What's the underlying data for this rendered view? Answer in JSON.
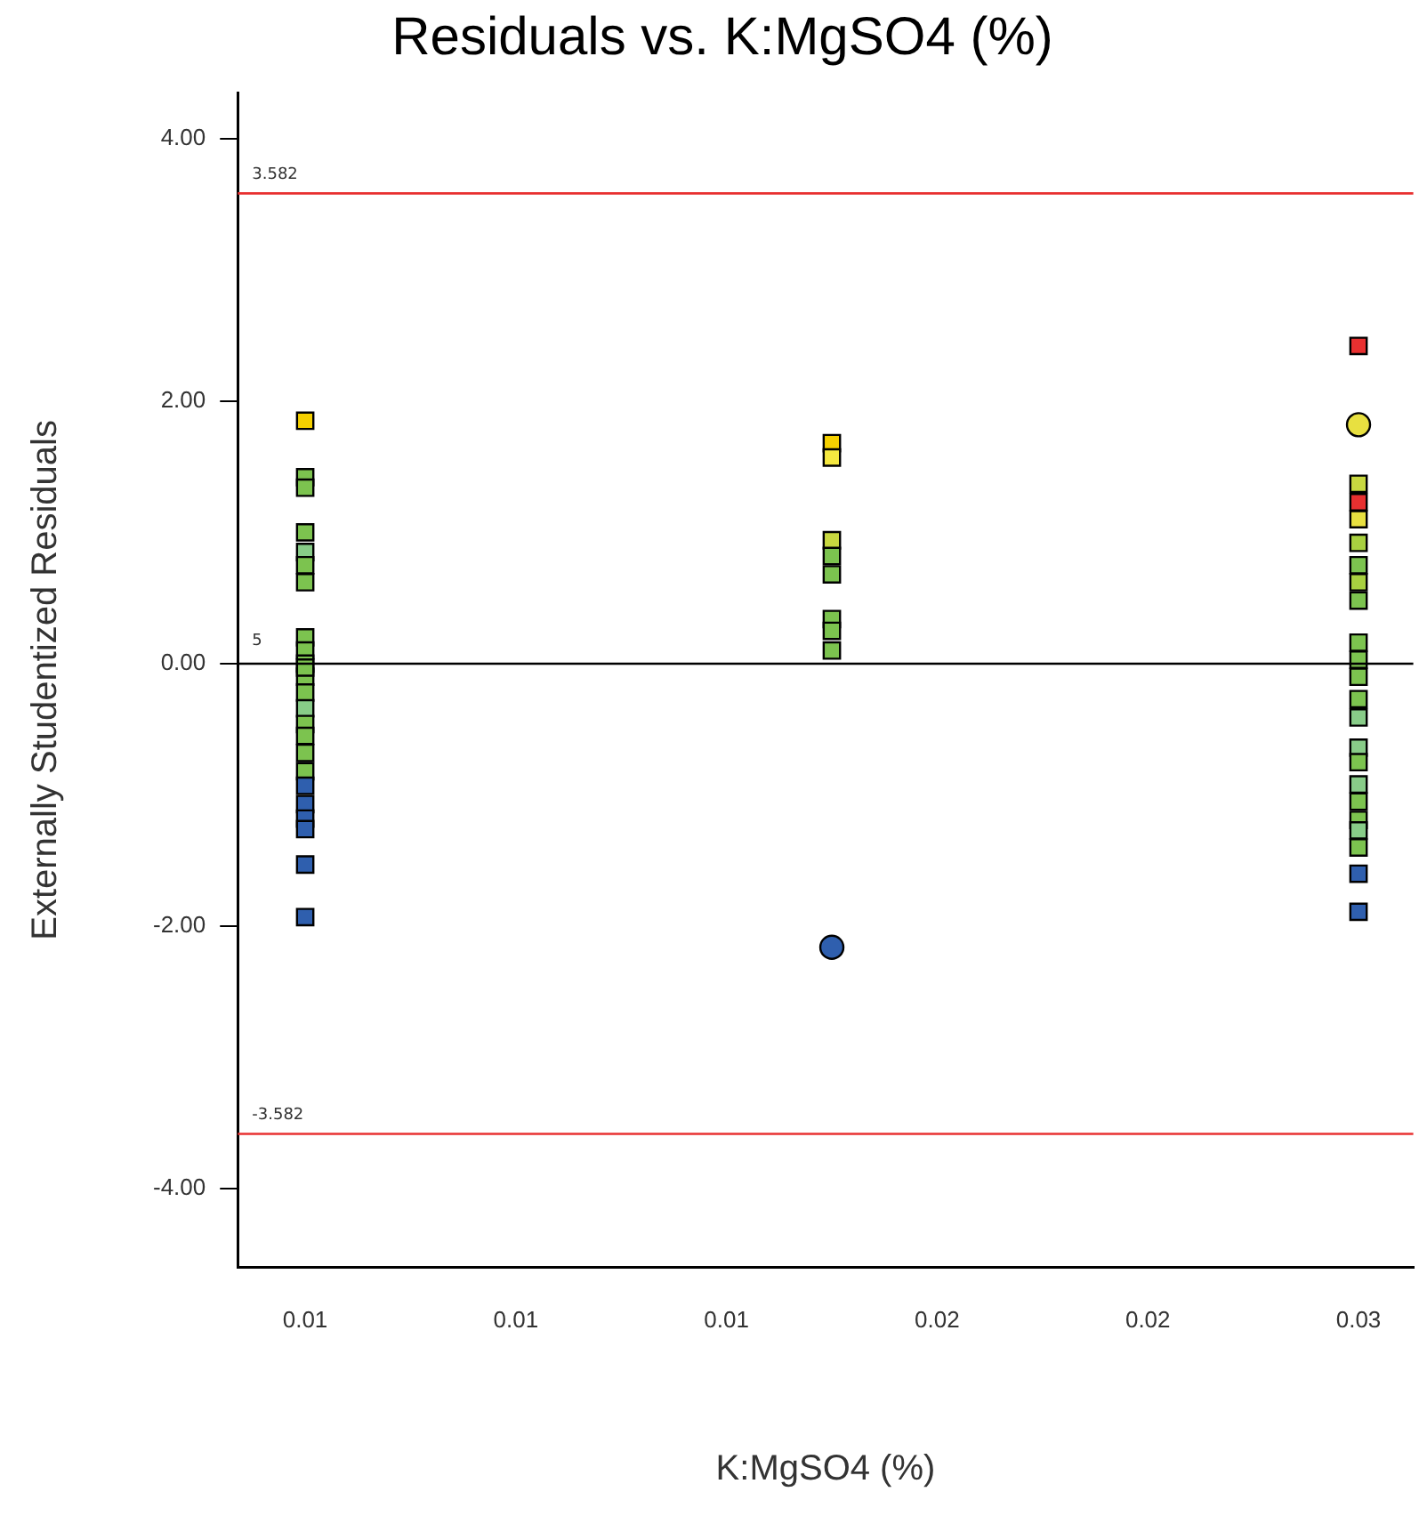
{
  "chart_data": {
    "type": "scatter",
    "title": "Residuals vs. K:MgSO4 (%)",
    "xlabel": "K:MgSO4 (%)",
    "ylabel": "Externally Studentized Residuals",
    "xlim": [
      0.0034,
      0.0313
    ],
    "ylim": [
      -4.6,
      4.35
    ],
    "xticks": [
      {
        "value": 0.005,
        "label": "0.01"
      },
      {
        "value": 0.01,
        "label": "0.01"
      },
      {
        "value": 0.015,
        "label": "0.01"
      },
      {
        "value": 0.02,
        "label": "0.02"
      },
      {
        "value": 0.025,
        "label": "0.02"
      },
      {
        "value": 0.03,
        "label": "0.03"
      }
    ],
    "yticks": [
      {
        "value": -4,
        "label": "-4.00"
      },
      {
        "value": -2,
        "label": "-2.00"
      },
      {
        "value": 0,
        "label": "0.00"
      },
      {
        "value": 2,
        "label": "2.00"
      },
      {
        "value": 4,
        "label": "4.00"
      }
    ],
    "grid": false,
    "legend": false,
    "series": [
      {
        "marker": "square",
        "x": [
          0.005,
          0.005,
          0.005,
          0.005,
          0.005,
          0.005,
          0.005,
          0.005,
          0.005,
          0.005,
          0.005,
          0.005,
          0.005,
          0.005,
          0.005,
          0.005,
          0.005,
          0.005,
          0.005,
          0.005,
          0.005,
          0.005,
          0.005,
          0.005,
          0.0175,
          0.0175,
          0.0175,
          0.0175,
          0.0175,
          0.0175,
          0.0175,
          0.0175,
          0.03,
          0.03,
          0.03,
          0.03,
          0.03,
          0.03,
          0.03,
          0.03,
          0.03,
          0.03,
          0.03,
          0.03,
          0.03,
          0.03,
          0.03,
          0.03,
          0.03,
          0.03,
          0.03,
          0.03,
          0.03,
          0.03
        ],
        "values": [
          1.85,
          1.42,
          1.34,
          1.0,
          0.85,
          0.75,
          0.62,
          0.2,
          0.1,
          0,
          -0.1,
          -0.22,
          -0.34,
          -0.46,
          -0.55,
          -0.68,
          -0.82,
          -0.93,
          -1.07,
          -1.18,
          -1.26,
          -1.53,
          -1.93,
          -0.03,
          1.68,
          1.57,
          0.94,
          0.82,
          0.68,
          0.34,
          0.25,
          0.1,
          2.42,
          1.37,
          1.23,
          1.1,
          0.92,
          0.75,
          0.62,
          0.48,
          0.16,
          0.03,
          -0.1,
          -0.27,
          -0.41,
          -0.64,
          -0.75,
          -0.92,
          -1.05,
          -1.19,
          -1.27,
          -1.4,
          -1.6,
          -1.89
        ],
        "colors": [
          "#f5d000",
          "#7cc34f",
          "#7cc34f",
          "#7cc34f",
          "#88cc88",
          "#7cc34f",
          "#7cc34f",
          "#7cc34f",
          "#7cc34f",
          "#7cc34f",
          "#7cc34f",
          "#7cc34f",
          "#88cc88",
          "#7cc34f",
          "#7cc34f",
          "#7cc34f",
          "#7cc34f",
          "#2f5fae",
          "#2f5fae",
          "#2f5fae",
          "#2f5fae",
          "#2f5fae",
          "#2f5fae",
          "#7cc34f",
          "#f5d000",
          "#f5e840",
          "#c8d840",
          "#7cc34f",
          "#7cc34f",
          "#7cc34f",
          "#7cc34f",
          "#7cc34f",
          "#e83030",
          "#c8d840",
          "#e83030",
          "#e8e040",
          "#a8d040",
          "#7cc34f",
          "#a8d040",
          "#7cc34f",
          "#7cc34f",
          "#7cc34f",
          "#7cc34f",
          "#7cc34f",
          "#88cc88",
          "#88cc88",
          "#7cc34f",
          "#88cc88",
          "#7cc34f",
          "#7cc34f",
          "#88cc88",
          "#7cc34f",
          "#2f5fae",
          "#2f5fae"
        ]
      },
      {
        "marker": "circle",
        "x": [
          0.0175,
          0.03
        ],
        "values": [
          -2.16,
          1.82
        ],
        "colors": [
          "#2f5fae",
          "#e8e040"
        ]
      }
    ],
    "ref_lines": [
      {
        "axis": "y",
        "value": 3.582,
        "label": "3.582",
        "color": "#e83030"
      },
      {
        "axis": "y",
        "value": 0,
        "color": "#000000"
      },
      {
        "axis": "y",
        "value": -3.582,
        "label": "-3.582",
        "color": "#e83030"
      }
    ],
    "annotations": [
      "5"
    ]
  }
}
